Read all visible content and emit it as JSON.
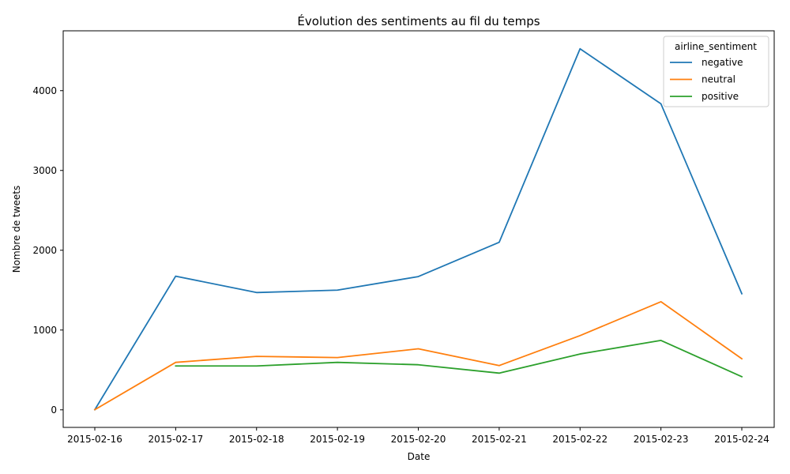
{
  "chart_data": {
    "type": "line",
    "title": "Évolution des sentiments au fil du temps",
    "xlabel": "Date",
    "ylabel": "Nombre de tweets",
    "x": [
      "2015-02-16",
      "2015-02-17",
      "2015-02-18",
      "2015-02-19",
      "2015-02-20",
      "2015-02-21",
      "2015-02-22",
      "2015-02-23",
      "2015-02-24"
    ],
    "yticks": [
      0,
      1000,
      2000,
      3000,
      4000
    ],
    "ylim": [
      -220,
      4750
    ],
    "grid": false,
    "legend": {
      "title": "airline_sentiment",
      "placement": "top-right"
    },
    "series": [
      {
        "name": "negative",
        "color": "#1f77b4",
        "values": [
          2,
          1675,
          1470,
          1500,
          1670,
          2100,
          4525,
          3835,
          1455
        ]
      },
      {
        "name": "neutral",
        "color": "#ff7f0e",
        "values": [
          2,
          595,
          670,
          655,
          765,
          555,
          930,
          1355,
          640
        ]
      },
      {
        "name": "positive",
        "color": "#2ca02c",
        "values": [
          null,
          550,
          550,
          595,
          565,
          460,
          700,
          870,
          415
        ]
      }
    ]
  }
}
